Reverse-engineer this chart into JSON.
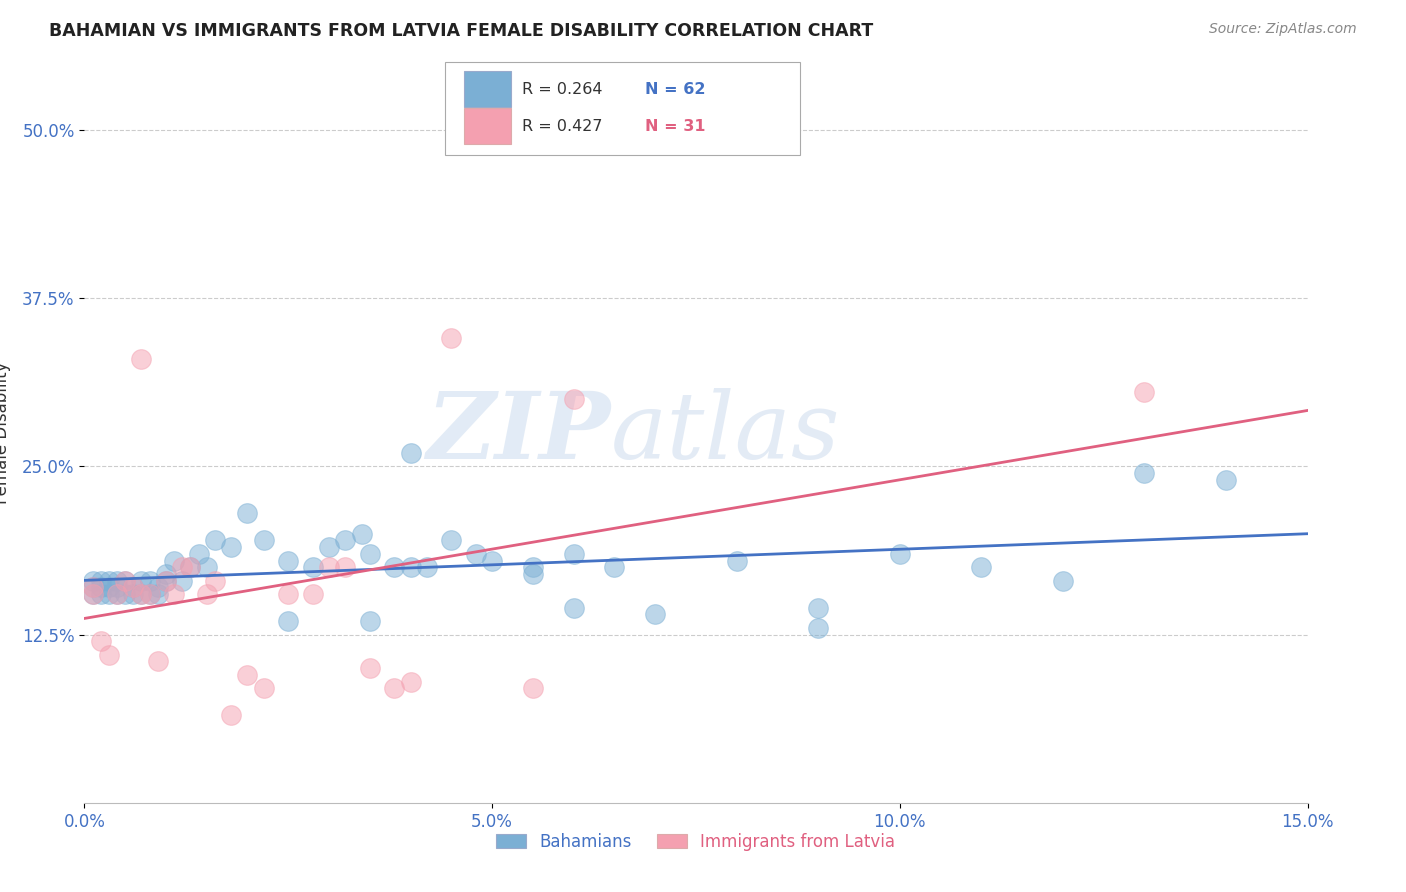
{
  "title": "BAHAMIAN VS IMMIGRANTS FROM LATVIA FEMALE DISABILITY CORRELATION CHART",
  "source": "Source: ZipAtlas.com",
  "ylabel": "Female Disability",
  "ytick_labels": [
    "12.5%",
    "25.0%",
    "37.5%",
    "50.0%"
  ],
  "ytick_vals": [
    0.125,
    0.25,
    0.375,
    0.5
  ],
  "xlim": [
    0.0,
    0.15
  ],
  "ylim": [
    0.0,
    0.55
  ],
  "legend_blue_r": "R = 0.264",
  "legend_blue_n": "N = 62",
  "legend_pink_r": "R = 0.427",
  "legend_pink_n": "N = 31",
  "label_blue": "Bahamians",
  "label_pink": "Immigrants from Latvia",
  "color_blue": "#7BAFD4",
  "color_pink": "#F4A0B0",
  "trendline_blue_color": "#4472C4",
  "trendline_pink_color": "#E06080",
  "blue_x": [
    0.001,
    0.001,
    0.001,
    0.002,
    0.002,
    0.002,
    0.003,
    0.003,
    0.003,
    0.004,
    0.004,
    0.004,
    0.005,
    0.005,
    0.006,
    0.006,
    0.007,
    0.007,
    0.008,
    0.008,
    0.009,
    0.009,
    0.01,
    0.01,
    0.011,
    0.012,
    0.013,
    0.014,
    0.015,
    0.016,
    0.018,
    0.02,
    0.022,
    0.025,
    0.028,
    0.03,
    0.032,
    0.034,
    0.035,
    0.038,
    0.04,
    0.042,
    0.045,
    0.048,
    0.05,
    0.055,
    0.06,
    0.065,
    0.07,
    0.08,
    0.09,
    0.1,
    0.11,
    0.12,
    0.13,
    0.14,
    0.04,
    0.055,
    0.025,
    0.035,
    0.06,
    0.09
  ],
  "blue_y": [
    0.155,
    0.165,
    0.16,
    0.16,
    0.165,
    0.155,
    0.155,
    0.165,
    0.16,
    0.155,
    0.16,
    0.165,
    0.155,
    0.165,
    0.155,
    0.16,
    0.155,
    0.165,
    0.155,
    0.165,
    0.155,
    0.16,
    0.165,
    0.17,
    0.18,
    0.165,
    0.175,
    0.185,
    0.175,
    0.195,
    0.19,
    0.215,
    0.195,
    0.18,
    0.175,
    0.19,
    0.195,
    0.2,
    0.185,
    0.175,
    0.26,
    0.175,
    0.195,
    0.185,
    0.18,
    0.175,
    0.185,
    0.175,
    0.14,
    0.18,
    0.145,
    0.185,
    0.175,
    0.165,
    0.245,
    0.24,
    0.175,
    0.17,
    0.135,
    0.135,
    0.145,
    0.13
  ],
  "pink_x": [
    0.001,
    0.001,
    0.002,
    0.003,
    0.004,
    0.005,
    0.006,
    0.007,
    0.007,
    0.008,
    0.009,
    0.01,
    0.011,
    0.012,
    0.013,
    0.015,
    0.016,
    0.018,
    0.02,
    0.022,
    0.025,
    0.028,
    0.03,
    0.032,
    0.035,
    0.038,
    0.04,
    0.045,
    0.06,
    0.13,
    0.055
  ],
  "pink_y": [
    0.16,
    0.155,
    0.12,
    0.11,
    0.155,
    0.165,
    0.16,
    0.33,
    0.155,
    0.155,
    0.105,
    0.165,
    0.155,
    0.175,
    0.175,
    0.155,
    0.165,
    0.065,
    0.095,
    0.085,
    0.155,
    0.155,
    0.175,
    0.175,
    0.1,
    0.085,
    0.09,
    0.345,
    0.3,
    0.305,
    0.085
  ],
  "watermark_zip": "ZIP",
  "watermark_atlas": "atlas",
  "background_color": "#FFFFFF",
  "grid_color": "#CCCCCC",
  "xtick_positions": [
    0.0,
    0.05,
    0.1,
    0.15
  ],
  "xtick_labels": [
    "0.0%",
    "5.0%",
    "10.0%",
    "15.0%"
  ]
}
